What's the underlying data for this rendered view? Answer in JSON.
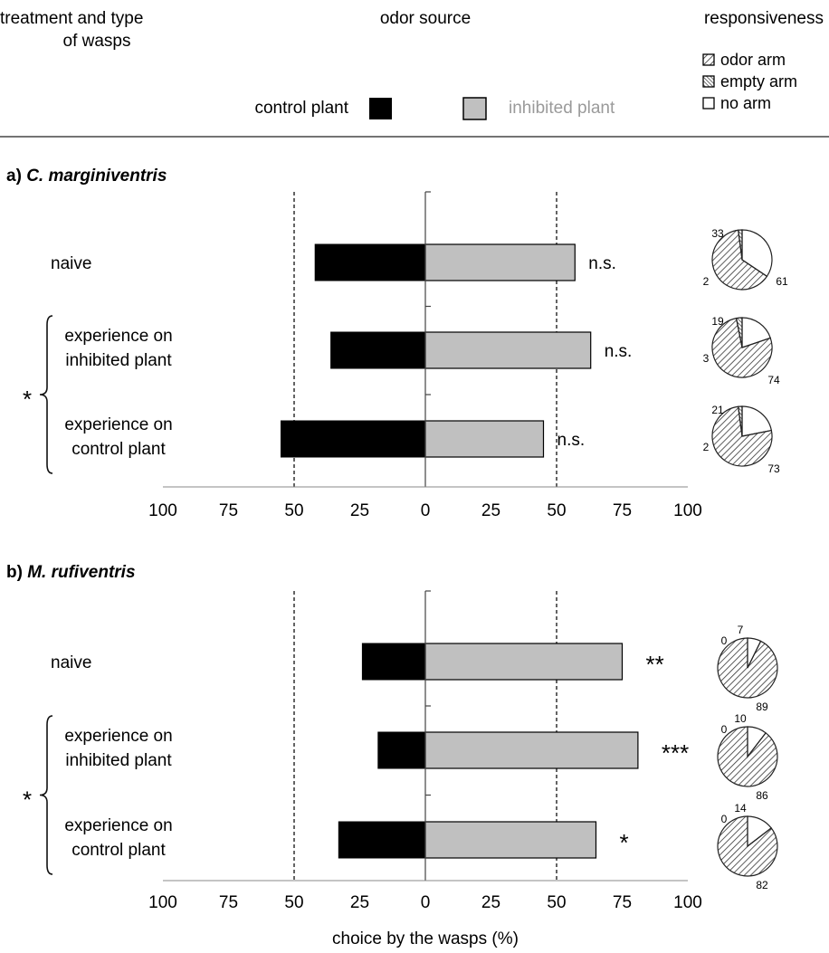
{
  "header": {
    "col1": [
      "treatment and type",
      "of wasps"
    ],
    "col2": "odor source",
    "col3": "responsiveness",
    "control_label": "control plant",
    "inhibited_label": "inhibited plant",
    "legend": [
      {
        "label": "odor arm",
        "pattern": "hatch-right"
      },
      {
        "label": "empty arm",
        "pattern": "hatch-left"
      },
      {
        "label": "no arm",
        "pattern": "none"
      }
    ]
  },
  "colors": {
    "control": "#000000",
    "inhibited": "#c0c0c0",
    "inhibited_text": "#9a9a9a",
    "axis": "#444444"
  },
  "xlabel": "choice by the wasps (%)",
  "chart_data": [
    {
      "type": "bar",
      "panel": "a)",
      "title": "C. marginiventris",
      "xlim": [
        -100,
        100
      ],
      "tick_labels": [
        "100",
        "75",
        "50",
        "25",
        "0",
        "25",
        "50",
        "75",
        "100"
      ],
      "reference_lines": [
        -50,
        50
      ],
      "bracket_label": "*",
      "categories": [
        {
          "lines": [
            "naive"
          ],
          "control": 42,
          "inhibited": 57,
          "significance": "n.s.",
          "pie": {
            "odor_arm": 61,
            "empty_arm": 2,
            "no_arm": 33
          }
        },
        {
          "lines": [
            "experience on",
            "inhibited plant"
          ],
          "control": 36,
          "inhibited": 63,
          "significance": "n.s.",
          "pie": {
            "odor_arm": 74,
            "empty_arm": 3,
            "no_arm": 19
          }
        },
        {
          "lines": [
            "experience on",
            "control plant"
          ],
          "control": 55,
          "inhibited": 45,
          "significance": "n.s.",
          "pie": {
            "odor_arm": 73,
            "empty_arm": 2,
            "no_arm": 21
          }
        }
      ]
    },
    {
      "type": "bar",
      "panel": "b)",
      "title": "M. rufiventris",
      "xlim": [
        -100,
        100
      ],
      "tick_labels": [
        "100",
        "75",
        "50",
        "25",
        "0",
        "25",
        "50",
        "75",
        "100"
      ],
      "reference_lines": [
        -50,
        50
      ],
      "bracket_label": "*",
      "categories": [
        {
          "lines": [
            "naive"
          ],
          "control": 24,
          "inhibited": 75,
          "significance": "**",
          "pie": {
            "odor_arm": 89,
            "empty_arm": 0,
            "no_arm": 7
          }
        },
        {
          "lines": [
            "experience on",
            "inhibited plant"
          ],
          "control": 18,
          "inhibited": 81,
          "significance": "***",
          "pie": {
            "odor_arm": 86,
            "empty_arm": 0,
            "no_arm": 10
          }
        },
        {
          "lines": [
            "experience on",
            "control plant"
          ],
          "control": 33,
          "inhibited": 65,
          "significance": "*",
          "pie": {
            "odor_arm": 82,
            "empty_arm": 0,
            "no_arm": 14
          }
        }
      ]
    }
  ]
}
